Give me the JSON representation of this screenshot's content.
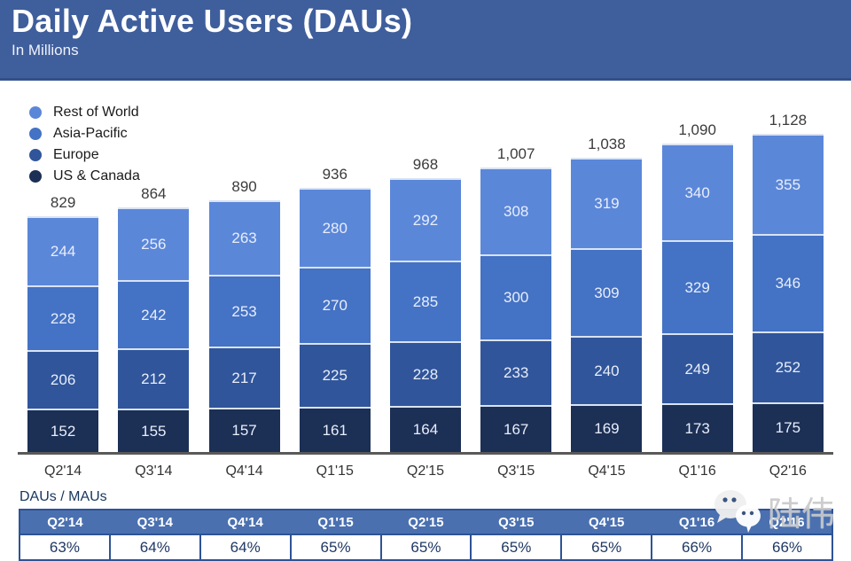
{
  "header": {
    "title": "Daily Active Users (DAUs)",
    "subtitle": "In Millions"
  },
  "legend": {
    "items": [
      {
        "label": "Rest of World",
        "color": "#5b87d9"
      },
      {
        "label": "Asia-Pacific",
        "color": "#4472c4"
      },
      {
        "label": "Europe",
        "color": "#30559a"
      },
      {
        "label": "US & Canada",
        "color": "#1c2f55"
      }
    ]
  },
  "chart_data": {
    "type": "bar",
    "stacked": true,
    "title": "Daily Active Users (DAUs)",
    "subtitle": "In Millions",
    "unit": "millions",
    "grid": false,
    "legend_position": "top-left",
    "ylim": [
      0,
      1128
    ],
    "categories": [
      "Q2'14",
      "Q3'14",
      "Q4'14",
      "Q1'15",
      "Q2'15",
      "Q3'15",
      "Q4'15",
      "Q1'16",
      "Q2'16"
    ],
    "series": [
      {
        "name": "Rest of World",
        "color": "#5b87d9",
        "values": [
          244,
          256,
          263,
          280,
          292,
          308,
          319,
          340,
          355
        ]
      },
      {
        "name": "Asia-Pacific",
        "color": "#4472c4",
        "values": [
          228,
          242,
          253,
          270,
          285,
          300,
          309,
          329,
          346
        ]
      },
      {
        "name": "Europe",
        "color": "#30559a",
        "values": [
          206,
          212,
          217,
          225,
          228,
          233,
          240,
          249,
          252
        ]
      },
      {
        "name": "US & Canada",
        "color": "#1c2f55",
        "values": [
          152,
          155,
          157,
          161,
          164,
          167,
          169,
          173,
          175
        ]
      }
    ],
    "totals": [
      "829",
      "864",
      "890",
      "936",
      "968",
      "1,007",
      "1,038",
      "1,090",
      "1,128"
    ]
  },
  "table": {
    "label": "DAUs / MAUs",
    "columns": [
      "Q2'14",
      "Q3'14",
      "Q4'14",
      "Q1'15",
      "Q2'15",
      "Q3'15",
      "Q4'15",
      "Q1'16",
      "Q2'16"
    ],
    "values": [
      "63%",
      "64%",
      "64%",
      "65%",
      "65%",
      "65%",
      "65%",
      "66%",
      "66%"
    ]
  },
  "watermark": {
    "icon": "wechat-icon",
    "text": "陆伟"
  },
  "colors": {
    "header_bg": "#3f5e9c",
    "header_border": "#33508a",
    "axis_line": "#595959",
    "table_header_bg": "#4a70b0",
    "table_border": "#2e5395",
    "segment_divider": "#d9e3f3"
  }
}
